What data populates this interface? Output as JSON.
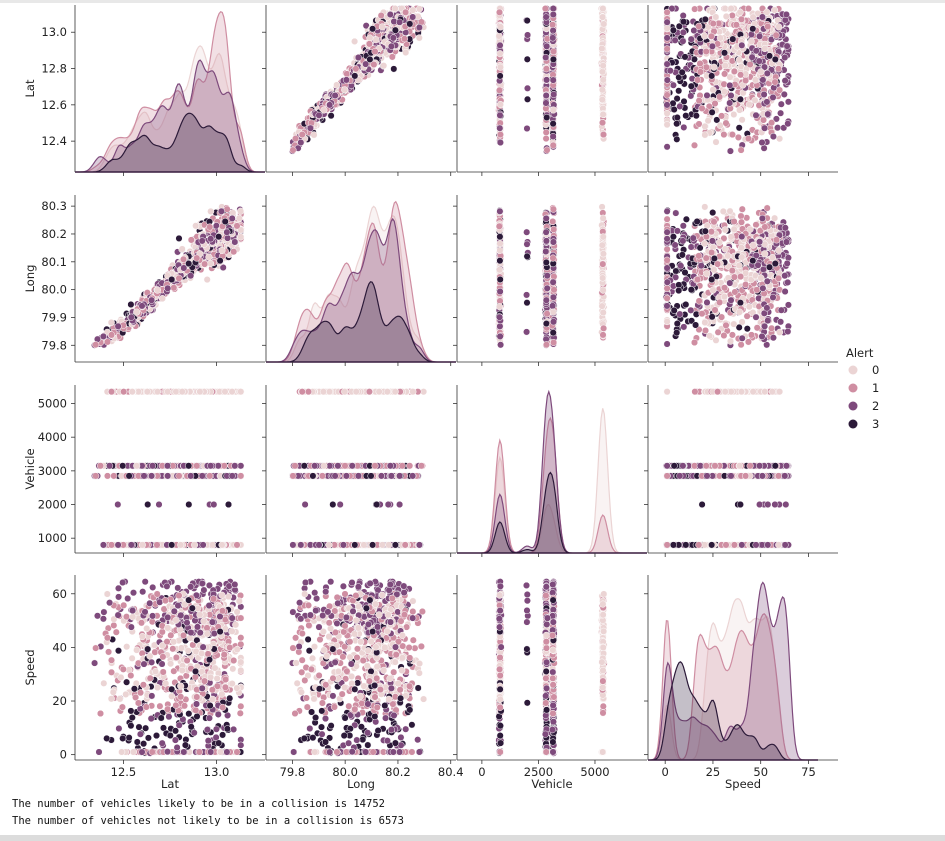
{
  "chart_data": {
    "type": "pairplot",
    "variables": [
      "Lat",
      "Long",
      "Vehicle",
      "Speed"
    ],
    "hue": "Alert",
    "hue_levels": [
      "0",
      "1",
      "2",
      "3"
    ],
    "hue_colors": [
      "#ebd4d4",
      "#cf8ea2",
      "#7e4a7c",
      "#2c1a39"
    ],
    "diag_kind": "kde",
    "offdiag_kind": "scatter",
    "legend": {
      "title": "Alert",
      "placement": "right"
    },
    "axes": {
      "Lat": {
        "lim": [
          12.23,
          13.15
        ],
        "ticks": [
          12.4,
          12.6,
          12.8,
          13.0
        ],
        "xticks": [
          12.5,
          13.0
        ],
        "tick_labels": [
          "12.4",
          "12.6",
          "12.8",
          "13.0"
        ],
        "xtick_labels": [
          "12.5",
          "13.0"
        ]
      },
      "Long": {
        "lim": [
          79.74,
          80.34
        ],
        "ticks": [
          79.8,
          79.9,
          80.0,
          80.1,
          80.2,
          80.3
        ],
        "xticks": [
          79.8,
          80.0,
          80.2,
          80.4
        ],
        "tick_labels": [
          "79.8",
          "79.9",
          "80.0",
          "80.1",
          "80.2",
          "80.3"
        ],
        "xtick_labels": [
          "79.8",
          "80.0",
          "80.2",
          "80.4"
        ]
      },
      "Vehicle": {
        "lim": [
          560,
          5550
        ],
        "ticks": [
          1000,
          2000,
          3000,
          4000,
          5000
        ],
        "xticks": [
          0,
          2500,
          5000
        ],
        "tick_labels": [
          "1000",
          "2000",
          "3000",
          "4000",
          "5000"
        ],
        "xtick_labels": [
          "0",
          "2500",
          "5000"
        ]
      },
      "Speed": {
        "lim": [
          -2,
          67
        ],
        "ticks": [
          0,
          20,
          40,
          60
        ],
        "xticks": [
          0,
          25,
          50,
          75
        ],
        "tick_labels": [
          "0",
          "20",
          "40",
          "60"
        ],
        "xtick_labels": [
          "0",
          "25",
          "50",
          "75"
        ]
      }
    },
    "x_axis_ranges": {
      "Lat": [
        12.24,
        13.26
      ],
      "Long": [
        79.7,
        80.42
      ],
      "Vehicle": [
        -1100,
        7300
      ],
      "Speed": [
        -9,
        80
      ]
    },
    "vehicle_types": [
      800,
      2000,
      2850,
      3150,
      5350
    ],
    "summary": {
      "likely_collision": 14752,
      "not_likely_collision": 6573
    }
  },
  "output_lines": [
    "The number of vehicles likely to be in a collision is 14752",
    "The number of vehicles not likely to be in a collision is 6573"
  ]
}
